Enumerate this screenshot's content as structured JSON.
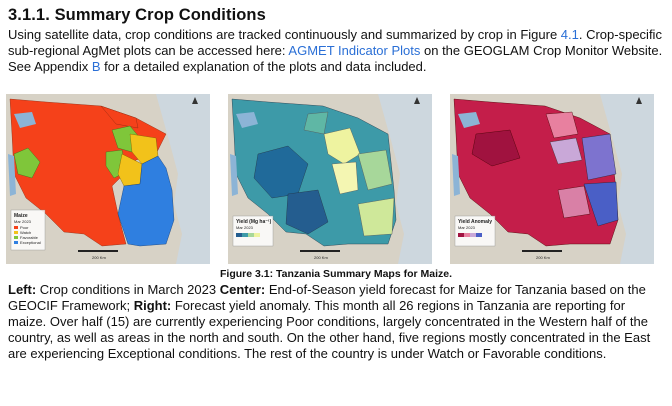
{
  "section": {
    "number": "3.1.1.",
    "title": "Summary Crop Conditions"
  },
  "intro": {
    "t1": "Using satellite data, crop conditions are tracked continuously and summarized by crop in Figure ",
    "fig_ref": "4.1",
    "t2": ". Crop-specific sub-regional AgMet plots can be accessed here: ",
    "link_text": "AGMET Indicator Plots",
    "t3": " on the GEOGLAM Crop Monitor Website. See Appendix ",
    "appendix_ref": "B",
    "t4": " for a detailed explanation of the plots and data included."
  },
  "maps": {
    "left": {
      "legend_title": "Maize",
      "legend_date": "Mar 2023",
      "legend_items": [
        "Poor",
        "Watch",
        "Favorable",
        "Exceptional"
      ],
      "legend_colors": [
        "#f5411a",
        "#f2c21a",
        "#7fc63a",
        "#2f7fe0"
      ],
      "scale_label": "200 Km"
    },
    "center": {
      "legend_title": "Yield (Mg ha⁻¹)",
      "legend_date": "Mar 2023",
      "scale_label": "200 Km"
    },
    "right": {
      "legend_title": "Yield Anomaly",
      "legend_date": "Mar 2023",
      "scale_label": "200 Km"
    }
  },
  "caption": "Figure 3.1: Tanzania Summary Maps for Maize.",
  "body": {
    "left_label": "Left:",
    "left_text": " Crop conditions in March 2023 ",
    "center_label": "Center:",
    "center_text": " End-of-Season yield forecast for Maize for Tanzania based on the GEOCIF Framework; ",
    "right_label": "Right:",
    "right_text": " Forecast yield anomaly. This month all 26 regions in Tanzania are reporting for maize. Over half (15) are currently experiencing Poor conditions, largely concentrated in the Western half of the country, as well as areas in the north and south. On the other hand, five regions mostly concentrated in the East are experiencing Exceptional conditions. The rest of the country is under Watch or Favorable conditions."
  }
}
